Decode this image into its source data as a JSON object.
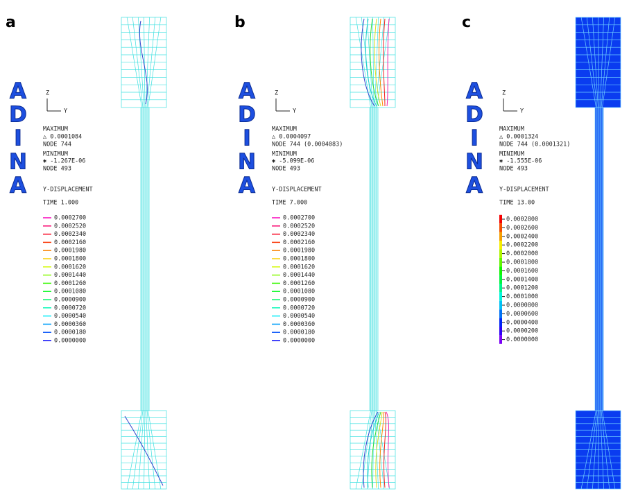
{
  "panels": [
    {
      "label": "a",
      "logo": [
        "A",
        "D",
        "I",
        "N",
        "A"
      ],
      "axis_z": "Z",
      "axis_y": "Y",
      "maximum": "MAXIMUM",
      "max_value": "△ 0.0001084",
      "max_node": "NODE 744",
      "minimum": "MINIMUM",
      "min_value": "✱ -1.267E-06",
      "min_node": "NODE 493",
      "quantity": "Y-DISPLACEMENT",
      "time": "TIME 1.000",
      "legend": [
        "0.0002700",
        "0.0002520",
        "0.0002340",
        "0.0002160",
        "0.0001980",
        "0.0001800",
        "0.0001620",
        "0.0001440",
        "0.0001260",
        "0.0001080",
        "0.0000900",
        "0.0000720",
        "0.0000540",
        "0.0000360",
        "0.0000180",
        "0.0000000"
      ]
    },
    {
      "label": "b",
      "logo": [
        "A",
        "D",
        "I",
        "N",
        "A"
      ],
      "axis_z": "Z",
      "axis_y": "Y",
      "maximum": "MAXIMUM",
      "max_value": "△ 0.0004097",
      "max_node": "NODE 744 (0.0004083)",
      "minimum": "MINIMUM",
      "min_value": "✱ -5.099E-06",
      "min_node": "NODE 493",
      "quantity": "Y-DISPLACEMENT",
      "time": "TIME 7.000",
      "legend": [
        "0.0002700",
        "0.0002520",
        "0.0002340",
        "0.0002160",
        "0.0001980",
        "0.0001800",
        "0.0001620",
        "0.0001440",
        "0.0001260",
        "0.0001080",
        "0.0000900",
        "0.0000720",
        "0.0000540",
        "0.0000360",
        "0.0000180",
        "0.0000000"
      ]
    },
    {
      "label": "c",
      "logo": [
        "A",
        "D",
        "I",
        "N",
        "A"
      ],
      "axis_z": "Z",
      "axis_y": "Y",
      "maximum": "MAXIMUM",
      "max_value": "△ 0.0001324",
      "max_node": "NODE 744 (0.0001321)",
      "minimum": "MINIMUM",
      "min_value": "✱ -1.555E-06",
      "min_node": "NODE 493",
      "quantity": "Y-DISPLACEMENT",
      "time": "TIME 13.00",
      "legend": [
        "0.0002800",
        "0.0002600",
        "0.0002400",
        "0.0002200",
        "0.0002000",
        "0.0001800",
        "0.0001600",
        "0.0001400",
        "0.0001200",
        "0.0001000",
        "0.0000800",
        "0.0000600",
        "0.0000400",
        "0.0000200",
        "0.0000000"
      ]
    }
  ]
}
